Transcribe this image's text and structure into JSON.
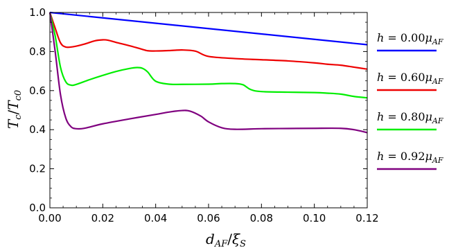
{
  "chart_data": {
    "type": "line",
    "title": "",
    "xlabel": "d_AF/ξ_S",
    "xlabel_parts": {
      "main": "d",
      "sub1": "AF",
      "slash": "/",
      "main2": "ξ",
      "sub2": "S"
    },
    "ylabel": "T_c/T_c0",
    "ylabel_parts": {
      "main": "T",
      "sub1": "c",
      "slash": "/",
      "main2": "T",
      "sub2": "c0"
    },
    "xlim": [
      0.0,
      0.12
    ],
    "ylim": [
      0.0,
      1.0
    ],
    "x_ticks": [
      "0.00",
      "0.02",
      "0.04",
      "0.06",
      "0.08",
      "0.10",
      "0.12"
    ],
    "x_tick_values": [
      0.0,
      0.02,
      0.04,
      0.06,
      0.08,
      0.1,
      0.12
    ],
    "y_ticks": [
      "0.0",
      "0.2",
      "0.4",
      "0.6",
      "0.8",
      "1.0"
    ],
    "y_tick_values": [
      0.0,
      0.2,
      0.4,
      0.6,
      0.8,
      1.0
    ],
    "grid": false,
    "legend_position": "right",
    "series": [
      {
        "name": "h = 0.00μ_AF",
        "legend_parts": {
          "lhs": "h",
          "eq": " = 0.00",
          "mu": "μ",
          "sub": "AF"
        },
        "color": "#0000ff",
        "x": [
          0.0,
          0.12
        ],
        "y": [
          1.0,
          0.835
        ]
      },
      {
        "name": "h = 0.60μ_AF",
        "legend_parts": {
          "lhs": "h",
          "eq": " = 0.60",
          "mu": "μ",
          "sub": "AF"
        },
        "color": "#ee0000",
        "x": [
          0.0,
          0.002,
          0.004,
          0.006,
          0.009,
          0.013,
          0.017,
          0.02,
          0.022,
          0.025,
          0.03,
          0.034,
          0.037,
          0.04,
          0.045,
          0.05,
          0.055,
          0.06,
          0.07,
          0.08,
          0.09,
          0.1,
          0.105,
          0.11,
          0.115,
          0.12
        ],
        "y": [
          1.0,
          0.92,
          0.845,
          0.823,
          0.825,
          0.838,
          0.855,
          0.86,
          0.858,
          0.847,
          0.83,
          0.815,
          0.804,
          0.803,
          0.805,
          0.808,
          0.802,
          0.775,
          0.764,
          0.758,
          0.752,
          0.742,
          0.735,
          0.73,
          0.72,
          0.71
        ]
      },
      {
        "name": "h = 0.80μ_AF",
        "legend_parts": {
          "lhs": "h",
          "eq": " = 0.80",
          "mu": "μ",
          "sub": "AF"
        },
        "color": "#00ee00",
        "x": [
          0.0,
          0.002,
          0.004,
          0.006,
          0.008,
          0.01,
          0.015,
          0.02,
          0.025,
          0.03,
          0.033,
          0.035,
          0.037,
          0.04,
          0.045,
          0.05,
          0.06,
          0.065,
          0.07,
          0.073,
          0.076,
          0.08,
          0.09,
          0.1,
          0.105,
          0.11,
          0.115,
          0.12
        ],
        "y": [
          1.0,
          0.88,
          0.72,
          0.645,
          0.628,
          0.632,
          0.656,
          0.678,
          0.698,
          0.713,
          0.718,
          0.714,
          0.695,
          0.648,
          0.633,
          0.632,
          0.633,
          0.636,
          0.636,
          0.63,
          0.605,
          0.595,
          0.592,
          0.59,
          0.587,
          0.582,
          0.57,
          0.563
        ]
      },
      {
        "name": "h = 0.92μ_AF",
        "legend_parts": {
          "lhs": "h",
          "eq": " = 0.92",
          "mu": "μ",
          "sub": "AF"
        },
        "color": "#7f007f",
        "x": [
          0.0,
          0.002,
          0.004,
          0.006,
          0.008,
          0.01,
          0.013,
          0.02,
          0.03,
          0.04,
          0.045,
          0.05,
          0.053,
          0.057,
          0.06,
          0.065,
          0.07,
          0.08,
          0.09,
          0.1,
          0.11,
          0.115,
          0.12
        ],
        "y": [
          1.0,
          0.8,
          0.58,
          0.46,
          0.415,
          0.405,
          0.407,
          0.43,
          0.455,
          0.478,
          0.49,
          0.498,
          0.495,
          0.47,
          0.44,
          0.41,
          0.402,
          0.405,
          0.406,
          0.407,
          0.407,
          0.4,
          0.385
        ]
      }
    ]
  }
}
